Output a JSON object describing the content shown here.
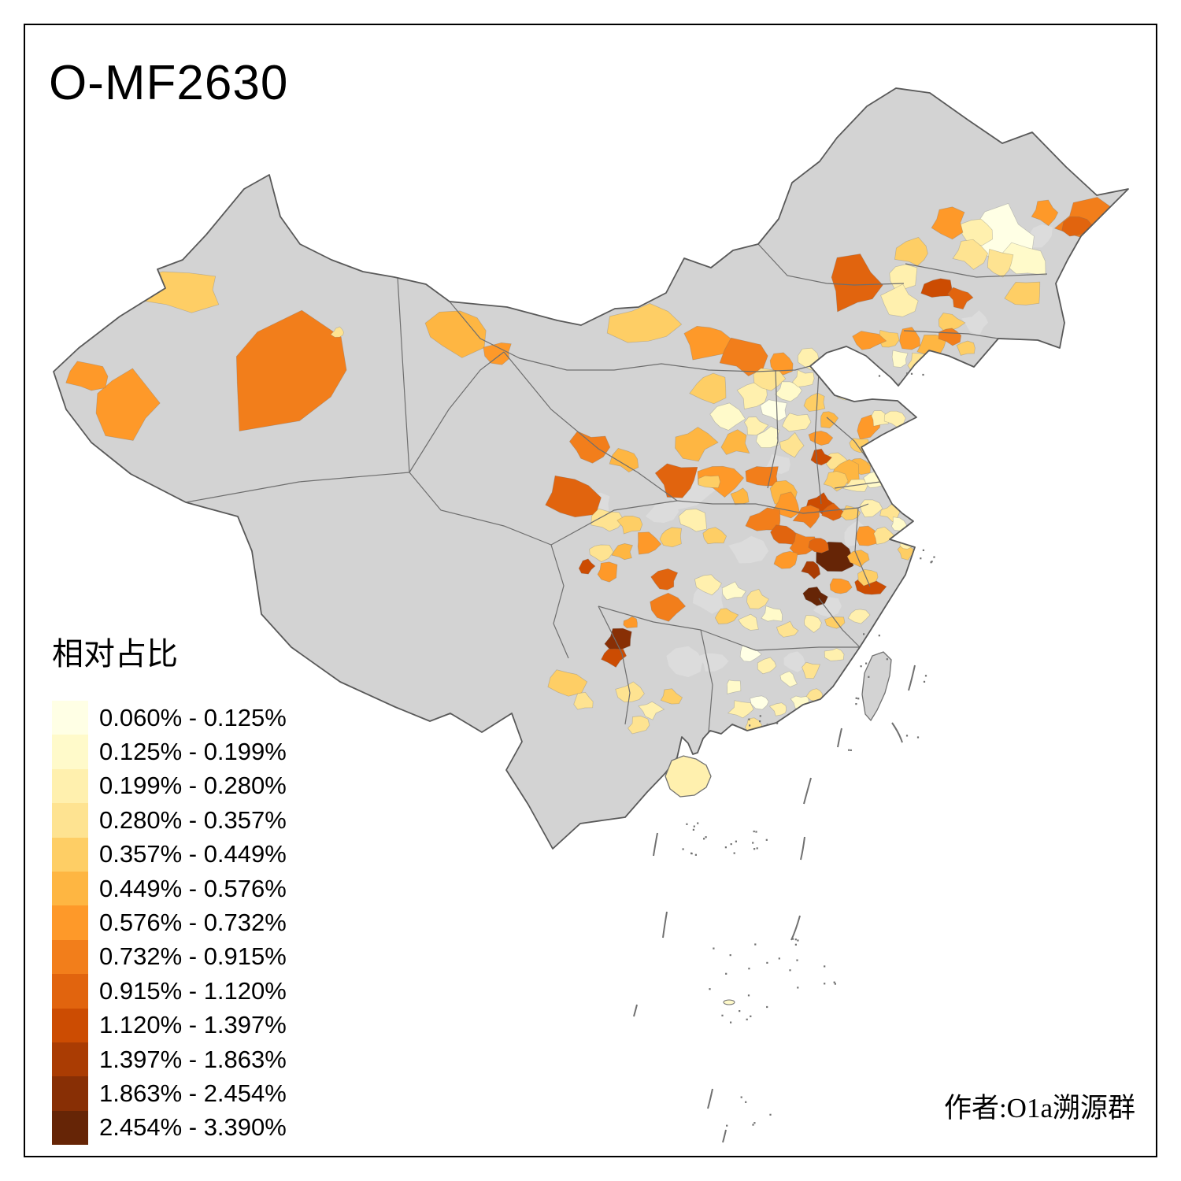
{
  "title": "O-MF2630",
  "legend": {
    "title": "相对占比",
    "items": [
      {
        "label": "0.060% - 0.125%",
        "color": "#FFFFE5"
      },
      {
        "label": "0.125% - 0.199%",
        "color": "#FFFACA"
      },
      {
        "label": "0.199% - 0.280%",
        "color": "#FFF0AE"
      },
      {
        "label": "0.280% - 0.357%",
        "color": "#FEE391"
      },
      {
        "label": "0.357% - 0.449%",
        "color": "#FECE65"
      },
      {
        "label": "0.449% - 0.576%",
        "color": "#FEB642"
      },
      {
        "label": "0.576% - 0.732%",
        "color": "#FE9929"
      },
      {
        "label": "0.732% - 0.915%",
        "color": "#F27E1B"
      },
      {
        "label": "0.915% - 1.120%",
        "color": "#E1640E"
      },
      {
        "label": "1.120% - 1.397%",
        "color": "#CC4C02"
      },
      {
        "label": "1.397% - 1.863%",
        "color": "#AA3C03"
      },
      {
        "label": "1.863% - 2.454%",
        "color": "#882F05"
      },
      {
        "label": "2.454% - 3.390%",
        "color": "#662506"
      }
    ]
  },
  "attribution": "作者:O1a溯源群",
  "map": {
    "no_data_color": "#D3D3D3",
    "alt_no_data_color": "#DCDCDC",
    "national_border_color": "#595959",
    "province_border_color": "#6E6E6E",
    "sea_color": "#FFFFFF",
    "hainan_class": 2,
    "taiwan": "no-data"
  },
  "chart_data": {
    "type": "choropleth",
    "region": "China, prefecture-level divisions",
    "title": "O-MF2630",
    "legend_title": "相对占比",
    "value_min": "0.060%",
    "value_max": "3.390%",
    "breaks": [
      "0.060%",
      "0.125%",
      "0.199%",
      "0.280%",
      "0.357%",
      "0.449%",
      "0.576%",
      "0.732%",
      "0.915%",
      "1.120%",
      "1.397%",
      "1.863%",
      "2.454%",
      "3.390%"
    ],
    "classes": [
      {
        "from": "0.060%",
        "to": "0.125%",
        "color": "#FFFFE5"
      },
      {
        "from": "0.125%",
        "to": "0.199%",
        "color": "#FFFACA"
      },
      {
        "from": "0.199%",
        "to": "0.280%",
        "color": "#FFF0AE"
      },
      {
        "from": "0.280%",
        "to": "0.357%",
        "color": "#FEE391"
      },
      {
        "from": "0.357%",
        "to": "0.449%",
        "color": "#FECE65"
      },
      {
        "from": "0.449%",
        "to": "0.576%",
        "color": "#FEB642"
      },
      {
        "from": "0.576%",
        "to": "0.732%",
        "color": "#FE9929"
      },
      {
        "from": "0.732%",
        "to": "0.915%",
        "color": "#F27E1B"
      },
      {
        "from": "0.915%",
        "to": "1.120%",
        "color": "#E1640E"
      },
      {
        "from": "1.120%",
        "to": "1.397%",
        "color": "#CC4C02"
      },
      {
        "from": "1.397%",
        "to": "1.863%",
        "color": "#AA3C03"
      },
      {
        "from": "1.863%",
        "to": "2.454%",
        "color": "#882F05"
      },
      {
        "from": "2.454%",
        "to": "3.390%",
        "color": "#662506"
      }
    ],
    "no_data_color": "#D3D3D3"
  }
}
